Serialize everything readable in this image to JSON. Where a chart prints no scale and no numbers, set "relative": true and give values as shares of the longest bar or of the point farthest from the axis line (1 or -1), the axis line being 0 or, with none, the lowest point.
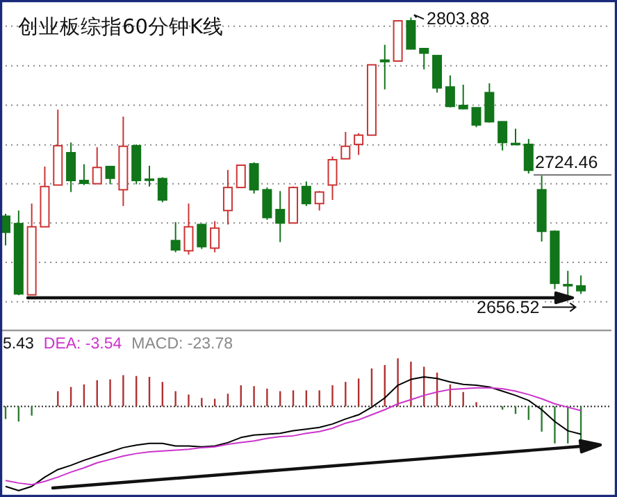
{
  "chart_data": [
    {
      "type": "candlestick",
      "title": "创业板综指60分钟K线",
      "categories": [
        null,
        null,
        null,
        null,
        null,
        null,
        null,
        null,
        null,
        null,
        null,
        null,
        null,
        null,
        null,
        null,
        null,
        null,
        null,
        null,
        null,
        null,
        null,
        null,
        null,
        null,
        null,
        null,
        null,
        null,
        null,
        null,
        null,
        null,
        null,
        null,
        null,
        null,
        null,
        null,
        null,
        null,
        null,
        null,
        null
      ],
      "ohlc": [
        [
          2698.8,
          2700.1,
          2683.4,
          2690.3
        ],
        [
          2694.9,
          2701.8,
          2657.0,
          2657.7
        ],
        [
          2657.2,
          2705.5,
          2657.2,
          2693.2
        ],
        [
          2693.2,
          2725.1,
          2693.2,
          2714.5
        ],
        [
          2715.3,
          2755.2,
          2715.3,
          2736.1
        ],
        [
          2732.4,
          2737.8,
          2711.6,
          2717.7
        ],
        [
          2717.7,
          2726.3,
          2715.3,
          2716.2
        ],
        [
          2716.0,
          2735.3,
          2716.0,
          2724.6
        ],
        [
          2725.1,
          2725.1,
          2715.7,
          2718.9
        ],
        [
          2712.8,
          2751.5,
          2704.2,
          2735.8
        ],
        [
          2736.1,
          2736.8,
          2715.7,
          2717.7
        ],
        [
          2718.4,
          2725.5,
          2714.5,
          2717.9
        ],
        [
          2718.7,
          2719.4,
          2706.2,
          2707.4
        ],
        [
          2685.9,
          2695.7,
          2679.7,
          2681.0
        ],
        [
          2680.5,
          2705.5,
          2678.5,
          2693.2
        ],
        [
          2694.4,
          2694.9,
          2681.5,
          2682.7
        ],
        [
          2681.9,
          2696.2,
          2679.7,
          2692.5
        ],
        [
          2701.8,
          2723.3,
          2694.4,
          2714.0
        ],
        [
          2714.0,
          2725.8,
          2714.0,
          2725.8
        ],
        [
          2726.5,
          2727.3,
          2710.8,
          2712.8
        ],
        [
          2712.8,
          2714.0,
          2696.9,
          2698.1
        ],
        [
          2702.3,
          2712.1,
          2685.1,
          2695.2
        ],
        [
          2695.2,
          2714.5,
          2695.2,
          2714.0
        ],
        [
          2714.5,
          2717.2,
          2704.2,
          2705.5
        ],
        [
          2705.5,
          2712.1,
          2701.8,
          2711.6
        ],
        [
          2715.3,
          2730.4,
          2707.4,
          2728.7
        ],
        [
          2729.2,
          2743.4,
          2729.2,
          2735.8
        ],
        [
          2736.8,
          2742.7,
          2731.2,
          2741.7
        ],
        [
          2741.7,
          2778.9,
          2741.7,
          2778.9
        ],
        [
          2781.4,
          2789.5,
          2765.9,
          2780.6
        ],
        [
          2780.9,
          2802.2,
          2780.9,
          2802.2
        ],
        [
          2802.2,
          2803.88,
          2787.3,
          2787.3
        ],
        [
          2787.5,
          2787.7,
          2776.5,
          2785.1
        ],
        [
          2783.8,
          2783.8,
          2764.2,
          2766.7
        ],
        [
          2767.2,
          2773.3,
          2756.4,
          2756.9
        ],
        [
          2757.4,
          2768.4,
          2755.4,
          2755.7
        ],
        [
          2756.2,
          2756.4,
          2745.9,
          2747.1
        ],
        [
          2764.2,
          2769.1,
          2748.3,
          2748.8
        ],
        [
          2748.8,
          2748.8,
          2733.6,
          2737.8
        ],
        [
          2737.3,
          2745.1,
          2736.3,
          2736.8
        ],
        [
          2736.8,
          2739.7,
          2721.4,
          2723.1
        ],
        [
          2712.8,
          2720.2,
          2685.4,
          2690.8
        ],
        [
          2690.8,
          2691.3,
          2660.2,
          2663.3
        ],
        [
          2662.6,
          2669.9,
          2656.52,
          2662.1
        ],
        [
          2661.9,
          2667.5,
          2657.7,
          2659.4
        ]
      ],
      "yticks": [
        {
          "value": 2799.3,
          "label": null
        },
        {
          "value": 2778.4,
          "label": null
        },
        {
          "value": 2757.6,
          "label": null
        },
        {
          "value": 2736.5,
          "label": null
        },
        {
          "value": 2716.0,
          "label": null
        },
        {
          "value": 2695.2,
          "label": null
        },
        {
          "value": 2674.4,
          "label": null
        },
        {
          "value": 2653.5,
          "label": null
        }
      ],
      "grid": "y",
      "annotations": [
        "2803.88",
        "2724.46",
        "2656.52"
      ]
    },
    {
      "type": "bar",
      "relative": true,
      "legend": "top left",
      "ref_lines": [
        {
          "axis": "y",
          "value": 0,
          "line_style": "dotted",
          "color": "#222222"
        }
      ],
      "categories": [
        null,
        null,
        null,
        null,
        null,
        null,
        null,
        null,
        null,
        null,
        null,
        null,
        null,
        null,
        null,
        null,
        null,
        null,
        null,
        null,
        null,
        null,
        null,
        null,
        null,
        null,
        null,
        null,
        null,
        null,
        null,
        null,
        null,
        null,
        null,
        null,
        null,
        null,
        null,
        null,
        null,
        null,
        null,
        null,
        null
      ],
      "series": [
        {
          "name": "5.43",
          "type": "line",
          "color": "#000000",
          "values": [
            -0.95,
            -1.0,
            -0.95,
            -0.84,
            -0.75,
            -0.7,
            -0.64,
            -0.59,
            -0.54,
            -0.49,
            -0.46,
            -0.44,
            -0.44,
            -0.47,
            -0.47,
            -0.48,
            -0.47,
            -0.43,
            -0.37,
            -0.34,
            -0.33,
            -0.32,
            -0.29,
            -0.27,
            -0.25,
            -0.21,
            -0.15,
            -0.1,
            -0.01,
            0.1,
            0.25,
            0.32,
            0.35,
            0.33,
            0.29,
            0.26,
            0.25,
            0.23,
            0.18,
            0.13,
            0.07,
            -0.04,
            -0.18,
            -0.29,
            -0.33
          ]
        },
        {
          "name": "DEA: -3.54",
          "type": "line",
          "color": "#cc33cc",
          "values": [
            -0.88,
            -0.91,
            -0.93,
            -0.89,
            -0.84,
            -0.78,
            -0.73,
            -0.67,
            -0.63,
            -0.59,
            -0.56,
            -0.54,
            -0.53,
            -0.52,
            -0.51,
            -0.49,
            -0.48,
            -0.45,
            -0.43,
            -0.41,
            -0.38,
            -0.36,
            -0.35,
            -0.32,
            -0.3,
            -0.26,
            -0.2,
            -0.16,
            -0.1,
            -0.04,
            0.03,
            0.08,
            0.13,
            0.17,
            0.2,
            0.21,
            0.22,
            0.22,
            0.21,
            0.18,
            0.14,
            0.09,
            0.03,
            -0.01,
            -0.05
          ]
        },
        {
          "name": "MACD: -23.78",
          "type": "bar",
          "color": "#888888",
          "values": [
            -0.15,
            -0.18,
            -0.11,
            0,
            0.18,
            0.23,
            0.26,
            0.31,
            0.32,
            0.37,
            0.36,
            0.35,
            0.29,
            0.18,
            0.14,
            0.1,
            0.09,
            0.15,
            0.25,
            0.24,
            0.21,
            0.18,
            0.19,
            0.19,
            0.19,
            0.25,
            0.29,
            0.33,
            0.45,
            0.49,
            0.57,
            0.53,
            0.47,
            0.4,
            0.26,
            0.17,
            0.05,
            0,
            -0.04,
            -0.09,
            -0.16,
            -0.3,
            -0.44,
            -0.44,
            -0.44
          ],
          "colors": [
            "#2e7d32",
            "#2e7d32",
            "#2e7d32",
            "#2e7d32",
            "#b03030",
            "#b03030",
            "#b03030",
            "#b03030",
            "#b03030",
            "#b03030",
            "#b03030",
            "#b03030",
            "#b03030",
            "#b03030",
            "#b03030",
            "#b03030",
            "#b03030",
            "#b03030",
            "#b03030",
            "#b03030",
            "#b03030",
            "#b03030",
            "#b03030",
            "#b03030",
            "#b03030",
            "#b03030",
            "#b03030",
            "#b03030",
            "#b03030",
            "#b03030",
            "#b03030",
            "#b03030",
            "#b03030",
            "#b03030",
            "#b03030",
            "#b03030",
            "#b03030",
            "#2e7d32",
            "#2e7d32",
            "#2e7d32",
            "#2e7d32",
            "#2e7d32",
            "#2e7d32",
            "#2e7d32",
            "#2e7d32"
          ]
        }
      ]
    }
  ]
}
